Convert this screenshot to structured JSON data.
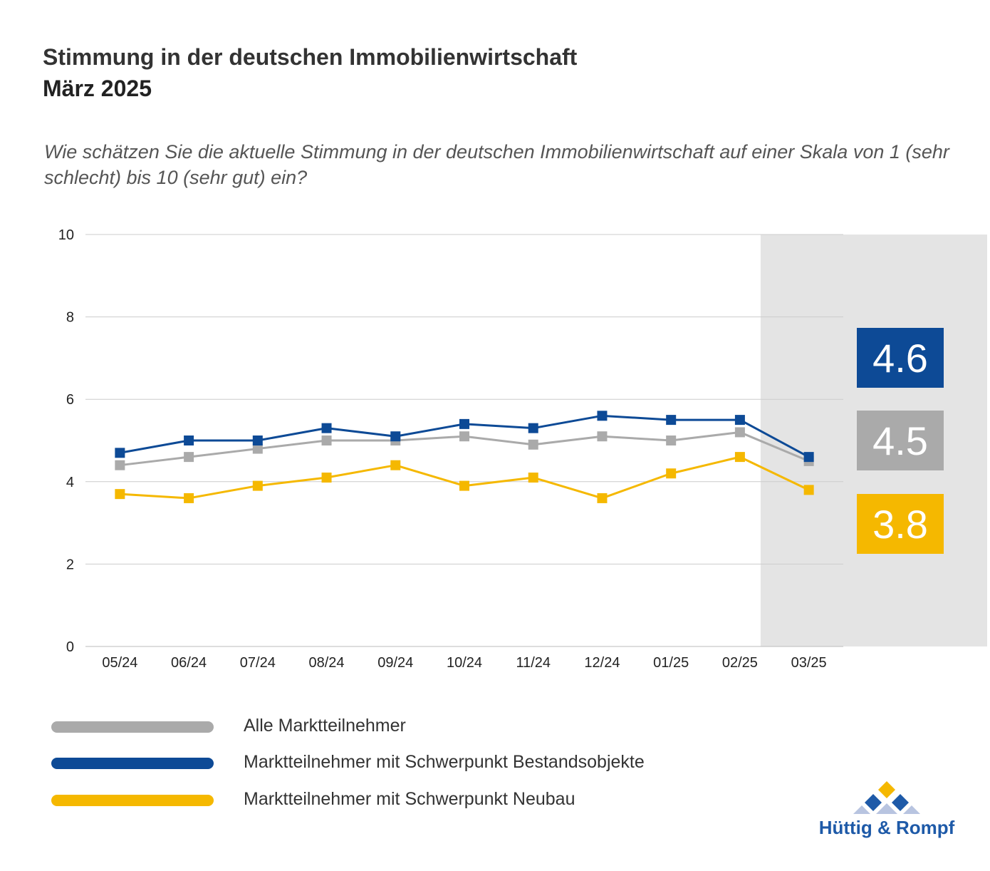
{
  "header": {
    "title": "Stimmung in der deutschen Immobilienwirtschaft",
    "subtitle": "März 2025",
    "question": "Wie schätzen Sie die aktuelle Stimmung in der deutschen Immobilienwirtschaft auf einer Skala von 1 (sehr schlecht) bis 10 (sehr gut) ein?"
  },
  "chart_data": {
    "type": "line",
    "x": [
      "05/24",
      "06/24",
      "07/24",
      "08/24",
      "09/24",
      "10/24",
      "11/24",
      "12/24",
      "01/25",
      "02/25",
      "03/25"
    ],
    "ylim": [
      0,
      10
    ],
    "yticks": [
      0,
      2,
      4,
      6,
      8,
      10
    ],
    "grid": true,
    "highlight_category": "03/25",
    "series": [
      {
        "name": "Alle Marktteilnehmer",
        "color": "#aaaaaa",
        "values": [
          4.4,
          4.6,
          4.8,
          5.0,
          5.0,
          5.1,
          4.9,
          5.1,
          5.0,
          5.2,
          4.5
        ]
      },
      {
        "name": "Marktteilnehmer mit Schwerpunkt Bestandsobjekte",
        "color": "#0d4a96",
        "values": [
          4.7,
          5.0,
          5.0,
          5.3,
          5.1,
          5.4,
          5.3,
          5.6,
          5.5,
          5.5,
          4.6
        ]
      },
      {
        "name": "Marktteilnehmer mit Schwerpunkt Neubau",
        "color": "#f5b800",
        "values": [
          3.7,
          3.6,
          3.9,
          4.1,
          4.4,
          3.9,
          4.1,
          3.6,
          4.2,
          4.6,
          3.8
        ]
      }
    ],
    "value_boxes": [
      {
        "label": "4.6",
        "color": "#0d4a96"
      },
      {
        "label": "4.5",
        "color": "#aaaaaa"
      },
      {
        "label": "3.8",
        "color": "#f5b800"
      }
    ],
    "legend_position": "bottom-left"
  },
  "legend": {
    "items": [
      {
        "label": "Alle Marktteilnehmer",
        "color": "#aaaaaa"
      },
      {
        "label": "Marktteilnehmer mit Schwerpunkt Bestandsobjekte",
        "color": "#0d4a96"
      },
      {
        "label": "Marktteilnehmer mit Schwerpunkt Neubau",
        "color": "#f5b800"
      }
    ]
  },
  "logo": {
    "text": "Hüttig & Rompf",
    "colors": {
      "diamond_top": "#f5b800",
      "diamond_mid": "#1e5aa8",
      "diamond_light": "#b8c4e0"
    }
  }
}
